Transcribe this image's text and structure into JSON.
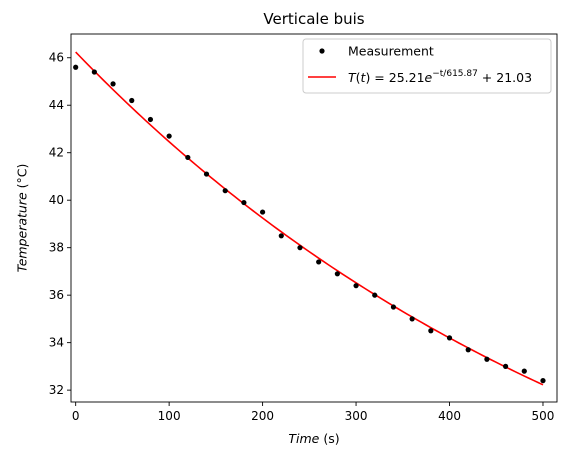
{
  "chart_data": {
    "type": "scatter",
    "title": "Verticale buis",
    "xlabel_italic": "Time",
    "xlabel_unit": " (s)",
    "ylabel_italic": "Temperature",
    "ylabel_unit": " (°C)",
    "xlim": [
      -5,
      515
    ],
    "ylim": [
      31.5,
      47
    ],
    "xticks": [
      0,
      100,
      200,
      300,
      400,
      500
    ],
    "yticks": [
      32,
      34,
      36,
      38,
      40,
      42,
      44,
      46
    ],
    "grid": false,
    "legend_position": "top-right",
    "series": [
      {
        "name": "Measurement",
        "kind": "scatter",
        "color": "#000000",
        "x": [
          0,
          20,
          40,
          60,
          80,
          100,
          120,
          140,
          160,
          180,
          200,
          220,
          240,
          260,
          280,
          300,
          320,
          340,
          360,
          380,
          400,
          420,
          440,
          460,
          480,
          500
        ],
        "y": [
          45.6,
          45.4,
          44.9,
          44.2,
          43.4,
          42.7,
          41.8,
          41.1,
          40.4,
          39.9,
          39.5,
          38.5,
          38.0,
          37.4,
          36.9,
          36.4,
          36.0,
          35.5,
          35.0,
          34.5,
          34.2,
          33.7,
          33.3,
          33.0,
          32.8,
          32.4
        ]
      },
      {
        "name_parts": [
          "T",
          "(",
          "t",
          ") = 25.21",
          "e",
          "−t/615.87",
          " + 21.03"
        ],
        "kind": "line",
        "color": "#ff0000",
        "model": {
          "A": 25.21,
          "tau": 615.87,
          "C": 21.03
        },
        "x_range": [
          0,
          500
        ]
      }
    ]
  }
}
